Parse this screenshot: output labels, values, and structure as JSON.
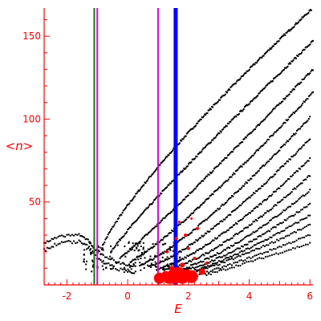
{
  "chart_data": {
    "type": "scatter",
    "title": "",
    "xlabel": "E",
    "ylabel": "<n>",
    "xlim": [
      -2.75,
      6.1
    ],
    "ylim": [
      0,
      167
    ],
    "x_ticks": [
      -2,
      0,
      2,
      4,
      6
    ],
    "y_ticks": [
      50,
      100,
      150
    ],
    "grid": false,
    "legend": "none",
    "colors": {
      "axis": "#ff0000",
      "points": "#000000",
      "red_markers": "#ff0000",
      "green_line": "#008000",
      "magenta_line": "#e000e0",
      "blue_line": "#0000ff"
    },
    "vertical_lines": [
      {
        "x": -1.1,
        "color": "#008000",
        "weight": "thin"
      },
      {
        "x": -1.0,
        "color": "#e000e0",
        "weight": "thin"
      },
      {
        "x": 1.0,
        "color": "#e000e0",
        "weight": "thin"
      },
      {
        "x": 1.58,
        "color": "#0000ff",
        "weight": "thick"
      }
    ],
    "curves": [
      {
        "x0": -0.85,
        "x1": 6.1,
        "y0": 22,
        "y1": 167,
        "exp": 0.82
      },
      {
        "x0": -0.55,
        "x1": 6.1,
        "y0": 20,
        "y1": 147,
        "exp": 0.92
      },
      {
        "x0": -0.25,
        "x1": 6.1,
        "y0": 16,
        "y1": 130,
        "exp": 1.05
      },
      {
        "x0": 0.1,
        "x1": 6.1,
        "y0": 14,
        "y1": 116,
        "exp": 1.15
      },
      {
        "x0": 0.4,
        "x1": 6.0,
        "y0": 12,
        "y1": 101,
        "exp": 1.25
      },
      {
        "x0": 0.7,
        "x1": 6.0,
        "y0": 11,
        "y1": 88,
        "exp": 1.3
      },
      {
        "x0": 1.0,
        "x1": 6.0,
        "y0": 10,
        "y1": 76,
        "exp": 1.35
      },
      {
        "x0": 1.2,
        "x1": 6.0,
        "y0": 9,
        "y1": 66,
        "exp": 1.4
      },
      {
        "x0": 1.4,
        "x1": 6.0,
        "y0": 8,
        "y1": 57,
        "exp": 1.4
      },
      {
        "x0": 1.6,
        "x1": 6.0,
        "y0": 8,
        "y1": 49,
        "exp": 1.4
      },
      {
        "x0": 1.8,
        "x1": 6.0,
        "y0": 7,
        "y1": 42,
        "exp": 1.3
      },
      {
        "x0": 2.0,
        "x1": 6.0,
        "y0": 7,
        "y1": 36,
        "exp": 1.2
      },
      {
        "x0": 2.3,
        "x1": 6.0,
        "y0": 6,
        "y1": 30,
        "exp": 1.1
      },
      {
        "x0": 2.6,
        "x1": 6.0,
        "y0": 6,
        "y1": 25,
        "exp": 1.0
      }
    ],
    "low_region": {
      "left_arc": [
        [
          -2.75,
          25
        ],
        [
          -2.4,
          28
        ],
        [
          -2.0,
          30
        ],
        [
          -1.6,
          30
        ],
        [
          -1.3,
          27
        ],
        [
          -1.1,
          22
        ],
        [
          -0.8,
          18
        ],
        [
          -0.4,
          14
        ],
        [
          0.0,
          12
        ],
        [
          0.3,
          11
        ]
      ],
      "x_range": [
        -1.5,
        1.8
      ],
      "y_range": [
        8,
        26
      ]
    },
    "red_markers": [
      {
        "x": 1.05,
        "y": 4,
        "size": 7
      },
      {
        "x": 1.25,
        "y": 6,
        "size": 5
      },
      {
        "x": 1.35,
        "y": 4,
        "size": 7
      },
      {
        "x": 1.5,
        "y": 5,
        "size": 9
      },
      {
        "x": 1.65,
        "y": 6,
        "size": 10
      },
      {
        "x": 1.8,
        "y": 5,
        "size": 9
      },
      {
        "x": 1.95,
        "y": 6,
        "size": 7
      },
      {
        "x": 2.1,
        "y": 5,
        "size": 8
      },
      {
        "x": 2.45,
        "y": 8,
        "size": 4
      },
      {
        "x": 1.45,
        "y": 10,
        "size": 3
      },
      {
        "x": 1.8,
        "y": 12,
        "size": 3
      },
      {
        "x": 2.2,
        "y": 16,
        "size": 2
      },
      {
        "x": 2.6,
        "y": 13,
        "size": 2
      },
      {
        "x": 1.3,
        "y": 20,
        "size": 2
      },
      {
        "x": 2.0,
        "y": 22,
        "size": 2
      },
      {
        "x": 1.6,
        "y": 28,
        "size": 2
      },
      {
        "x": 1.9,
        "y": 30,
        "size": 2
      },
      {
        "x": 2.3,
        "y": 34,
        "size": 2
      },
      {
        "x": 1.7,
        "y": 38,
        "size": 1.5
      },
      {
        "x": 2.1,
        "y": 40,
        "size": 1.5
      }
    ]
  }
}
